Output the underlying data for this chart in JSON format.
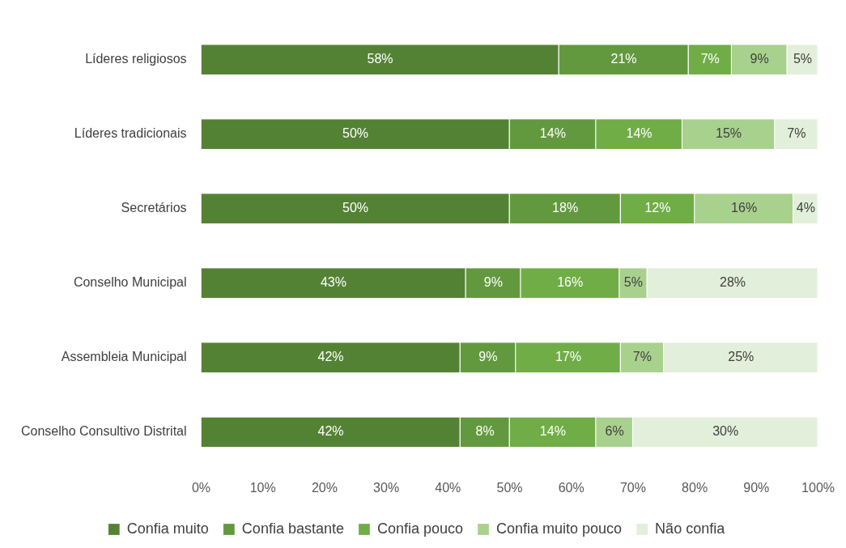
{
  "chart_data": {
    "type": "bar",
    "orientation": "horizontal",
    "stacked": true,
    "categories": [
      "Líderes religiosos",
      "Líderes tradicionais",
      "Secretários",
      "Conselho Municipal",
      "Assembleia Municipal",
      "Conselho Consultivo Distrital"
    ],
    "series": [
      {
        "name": "Confia muito",
        "color": "#548235",
        "values": [
          58,
          50,
          50,
          42.9,
          42,
          42
        ],
        "value_labels": [
          "58%",
          "50%",
          "50%",
          "43%",
          "42%",
          "42%"
        ]
      },
      {
        "name": "Confia bastante",
        "color": "#62993e",
        "values": [
          21,
          14,
          18,
          8.9,
          9,
          8
        ],
        "value_labels": [
          "21%",
          "14%",
          "18%",
          "9%",
          "9%",
          "8%"
        ]
      },
      {
        "name": "Confia pouco",
        "color": "#70ad47",
        "values": [
          7,
          14,
          12,
          16,
          17,
          14
        ],
        "value_labels": [
          "7%",
          "14%",
          "12%",
          "16%",
          "17%",
          "14%"
        ]
      },
      {
        "name": "Confia muito pouco",
        "color": "#a9d18e",
        "values": [
          9,
          15,
          16,
          4.5,
          7,
          6
        ],
        "value_labels": [
          "9%",
          "15%",
          "16%",
          "5%",
          "7%",
          "6%"
        ]
      },
      {
        "name": "Não confia",
        "color": "#e2efda",
        "values": [
          5,
          7,
          4,
          27.7,
          25,
          30
        ],
        "value_labels": [
          "5%",
          "7%",
          "4%",
          "28%",
          "25%",
          "30%"
        ]
      }
    ],
    "xlim": [
      0,
      100
    ],
    "xticks": [
      {
        "value": 0,
        "label": "0%"
      },
      {
        "value": 10,
        "label": "10%"
      },
      {
        "value": 20,
        "label": "20%"
      },
      {
        "value": 30,
        "label": "30%"
      },
      {
        "value": 40,
        "label": "40%"
      },
      {
        "value": 50,
        "label": "50%"
      },
      {
        "value": 60,
        "label": "60%"
      },
      {
        "value": 70,
        "label": "70%"
      },
      {
        "value": 80,
        "label": "80%"
      },
      {
        "value": 90,
        "label": "90%"
      },
      {
        "value": 100,
        "label": "100%"
      }
    ],
    "grid": false,
    "legend": "bottom"
  }
}
